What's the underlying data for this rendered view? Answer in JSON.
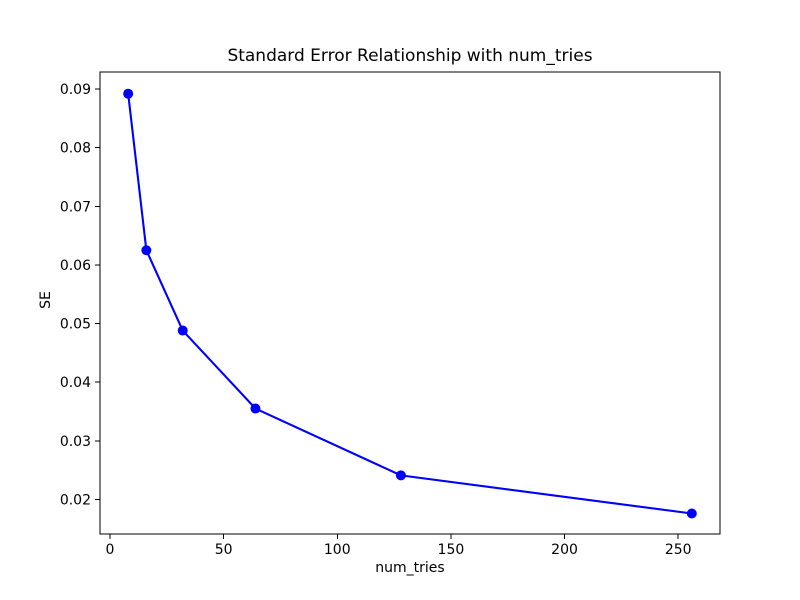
{
  "figure": {
    "background": "#ffffff"
  },
  "chart_data": {
    "type": "line",
    "title": "Standard Error Relationship with num_tries",
    "xlabel": "num_tries",
    "ylabel": "SE",
    "series": [
      {
        "name": "SE",
        "x": [
          8,
          16,
          32,
          64,
          128,
          256
        ],
        "y": [
          0.0892,
          0.0625,
          0.0488,
          0.0355,
          0.0241,
          0.0176
        ]
      }
    ],
    "xlim": [
      -4.4,
      268.4
    ],
    "ylim": [
      0.0141,
      0.0929
    ],
    "xticks": [
      0,
      50,
      100,
      150,
      200,
      250
    ],
    "xtick_labels": [
      "0",
      "50",
      "100",
      "150",
      "200",
      "250"
    ],
    "yticks": [
      0.02,
      0.03,
      0.04,
      0.05,
      0.06,
      0.07,
      0.08,
      0.09
    ],
    "ytick_labels": [
      "0.02",
      "0.03",
      "0.04",
      "0.05",
      "0.06",
      "0.07",
      "0.08",
      "0.09"
    ],
    "grid": false,
    "legend": false,
    "line_color": "#0000ff",
    "marker": "circle",
    "marker_color": "#0000ff",
    "spine_color": "#000000",
    "text_color": "#000000",
    "background": "#ffffff"
  }
}
